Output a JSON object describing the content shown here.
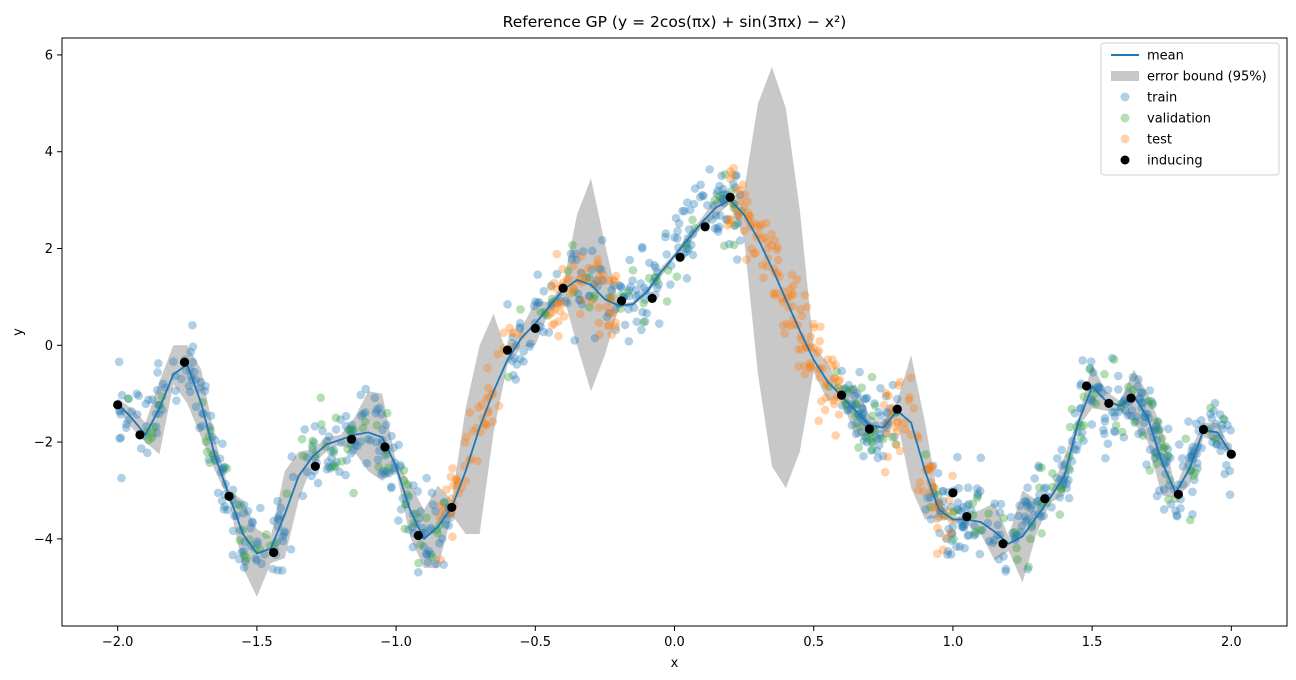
{
  "chart_data": {
    "type": "scatter",
    "title": "Reference GP (y = 2cos(πx) + sin(3πx) − x²)",
    "xlabel": "x",
    "ylabel": "y",
    "xlim": [
      -2.2,
      2.2
    ],
    "ylim": [
      -5.8,
      6.35
    ],
    "xticks": [
      -2.0,
      -1.5,
      -1.0,
      -0.5,
      0.0,
      0.5,
      1.0,
      1.5,
      2.0
    ],
    "xtick_labels": [
      "−2.0",
      "−1.5",
      "−1.0",
      "−0.5",
      "0.0",
      "0.5",
      "1.0",
      "1.5",
      "2.0"
    ],
    "yticks": [
      -4,
      -2,
      0,
      2,
      4,
      6
    ],
    "ytick_labels": [
      "−4",
      "−2",
      "0",
      "2",
      "4",
      "6"
    ],
    "grid": false,
    "legend_position": "top-right",
    "legend": [
      {
        "label": "mean",
        "kind": "line",
        "color": "#1f77b4"
      },
      {
        "label": "error bound (95%)",
        "kind": "patch",
        "color": "#c8c8c8"
      },
      {
        "label": "train",
        "kind": "marker",
        "color": "#1f77b4"
      },
      {
        "label": "validation",
        "kind": "marker",
        "color": "#2ca02c"
      },
      {
        "label": "test",
        "kind": "marker",
        "color": "#ff7f0e"
      },
      {
        "label": "inducing",
        "kind": "marker",
        "color": "#000000"
      }
    ],
    "mean": {
      "x": [
        -2.0,
        -1.95,
        -1.9,
        -1.85,
        -1.8,
        -1.75,
        -1.7,
        -1.65,
        -1.6,
        -1.55,
        -1.5,
        -1.45,
        -1.4,
        -1.35,
        -1.3,
        -1.25,
        -1.2,
        -1.15,
        -1.1,
        -1.05,
        -1.0,
        -0.95,
        -0.9,
        -0.85,
        -0.8,
        -0.75,
        -0.7,
        -0.65,
        -0.6,
        -0.55,
        -0.5,
        -0.45,
        -0.4,
        -0.35,
        -0.3,
        -0.25,
        -0.2,
        -0.15,
        -0.1,
        -0.05,
        0.0,
        0.05,
        0.1,
        0.15,
        0.2,
        0.25,
        0.3,
        0.35,
        0.4,
        0.45,
        0.5,
        0.55,
        0.6,
        0.65,
        0.7,
        0.75,
        0.8,
        0.85,
        0.9,
        0.95,
        1.0,
        1.05,
        1.1,
        1.15,
        1.2,
        1.25,
        1.3,
        1.35,
        1.4,
        1.45,
        1.5,
        1.55,
        1.6,
        1.65,
        1.7,
        1.75,
        1.8,
        1.85,
        1.9,
        1.95,
        2.0
      ],
      "y": [
        -1.2,
        -1.5,
        -1.85,
        -1.3,
        -0.6,
        -0.4,
        -1.2,
        -2.3,
        -3.1,
        -3.9,
        -4.3,
        -4.2,
        -3.5,
        -2.7,
        -2.3,
        -2.05,
        -1.95,
        -1.85,
        -1.8,
        -1.9,
        -2.5,
        -3.4,
        -4.0,
        -3.75,
        -3.35,
        -2.6,
        -1.7,
        -0.95,
        -0.3,
        0.15,
        0.45,
        0.8,
        1.15,
        1.35,
        1.25,
        0.95,
        0.82,
        0.85,
        1.1,
        1.5,
        1.85,
        2.2,
        2.55,
        2.85,
        3.0,
        2.7,
        2.2,
        1.6,
        0.95,
        0.3,
        -0.3,
        -0.75,
        -1.05,
        -1.35,
        -1.65,
        -1.7,
        -1.35,
        -1.6,
        -2.6,
        -3.4,
        -3.6,
        -3.6,
        -3.65,
        -3.85,
        -4.1,
        -3.95,
        -3.55,
        -3.15,
        -2.7,
        -1.6,
        -0.85,
        -1.15,
        -1.25,
        -1.05,
        -1.5,
        -2.4,
        -3.05,
        -2.55,
        -1.75,
        -1.8,
        -2.25
      ]
    },
    "error_band": {
      "x": [
        -2.0,
        -1.95,
        -1.9,
        -1.85,
        -1.8,
        -1.75,
        -1.7,
        -1.65,
        -1.6,
        -1.55,
        -1.5,
        -1.45,
        -1.4,
        -1.35,
        -1.3,
        -1.25,
        -1.2,
        -1.15,
        -1.1,
        -1.05,
        -1.0,
        -0.95,
        -0.9,
        -0.85,
        -0.8,
        -0.75,
        -0.7,
        -0.65,
        -0.6,
        -0.55,
        -0.5,
        -0.45,
        -0.4,
        -0.35,
        -0.3,
        -0.25,
        -0.2,
        -0.15,
        -0.1,
        -0.05,
        0.0,
        0.05,
        0.1,
        0.15,
        0.2,
        0.25,
        0.3,
        0.35,
        0.4,
        0.45,
        0.5,
        0.55,
        0.6,
        0.65,
        0.7,
        0.75,
        0.8,
        0.85,
        0.9,
        0.95,
        1.0,
        1.05,
        1.1,
        1.15,
        1.2,
        1.25,
        1.3,
        1.35,
        1.4,
        1.45,
        1.5,
        1.55,
        1.6,
        1.65,
        1.7,
        1.75,
        1.8,
        1.85,
        1.9,
        1.95,
        2.0
      ],
      "lower": [
        -1.3,
        -1.7,
        -2.0,
        -2.25,
        -0.8,
        -1.2,
        -1.9,
        -2.6,
        -3.2,
        -4.6,
        -5.2,
        -4.5,
        -4.4,
        -3.2,
        -2.45,
        -2.2,
        -2.05,
        -2.2,
        -2.6,
        -2.8,
        -2.6,
        -3.95,
        -4.6,
        -4.6,
        -3.5,
        -3.9,
        -3.9,
        -1.8,
        -0.4,
        -0.05,
        0.0,
        0.7,
        1.05,
        0.0,
        -0.95,
        -0.2,
        0.78,
        0.8,
        1.05,
        1.4,
        1.8,
        2.1,
        2.45,
        2.65,
        2.95,
        2.2,
        -0.6,
        -2.5,
        -2.95,
        -2.2,
        -0.55,
        -1.15,
        -1.1,
        -1.9,
        -1.85,
        -1.8,
        -1.55,
        -2.95,
        -3.6,
        -3.55,
        -3.65,
        -3.7,
        -3.9,
        -4.45,
        -4.25,
        -4.9,
        -3.9,
        -3.25,
        -3.1,
        -1.7,
        -1.3,
        -1.35,
        -1.35,
        -1.6,
        -2.0,
        -3.1,
        -3.15,
        -2.9,
        -1.9,
        -2.0,
        -2.35
      ],
      "upper": [
        -1.1,
        -1.3,
        -1.6,
        -0.75,
        0.0,
        0.0,
        -0.5,
        -1.95,
        -3.0,
        -3.2,
        -3.8,
        -3.95,
        -2.6,
        -2.2,
        -2.15,
        -1.9,
        -1.85,
        -1.5,
        -0.95,
        -1.0,
        -2.4,
        -2.85,
        -3.4,
        -2.9,
        -3.2,
        -1.3,
        0.0,
        0.65,
        -0.2,
        0.35,
        0.9,
        0.9,
        1.25,
        2.7,
        3.45,
        2.1,
        0.86,
        0.9,
        1.15,
        1.6,
        1.9,
        2.3,
        2.65,
        3.05,
        3.05,
        3.2,
        5.0,
        5.75,
        4.9,
        2.8,
        -0.05,
        -0.35,
        -1.0,
        -0.8,
        -1.45,
        -1.6,
        -1.15,
        -0.2,
        -1.6,
        -3.25,
        -3.55,
        -3.5,
        -3.4,
        -3.25,
        -3.95,
        -3.0,
        -3.2,
        -3.05,
        -2.3,
        -1.5,
        -0.4,
        -0.95,
        -1.15,
        -0.5,
        -1.0,
        -1.7,
        -2.95,
        -2.2,
        -1.6,
        -1.6,
        -2.15
      ]
    },
    "inducing": {
      "x": [
        -2.0,
        -1.92,
        -1.76,
        -1.6,
        -1.44,
        -1.29,
        -1.16,
        -1.04,
        -0.92,
        -0.8,
        -0.6,
        -0.5,
        -0.4,
        -0.19,
        -0.08,
        0.02,
        0.11,
        0.2,
        0.6,
        0.7,
        0.8,
        1.0,
        1.05,
        1.18,
        1.33,
        1.48,
        1.56,
        1.64,
        1.81,
        1.9,
        2.0
      ],
      "y": [
        -1.23,
        -1.85,
        -0.35,
        -3.12,
        -4.28,
        -2.5,
        -1.94,
        -2.1,
        -3.93,
        -3.35,
        -0.1,
        0.35,
        1.18,
        0.92,
        0.97,
        1.82,
        2.45,
        3.06,
        -1.03,
        -1.73,
        -1.32,
        -3.05,
        -3.54,
        -4.1,
        -3.17,
        -0.84,
        -1.2,
        -1.09,
        -3.08,
        -1.74,
        -2.25
      ]
    },
    "series": [
      {
        "name": "train",
        "color": "#1f77b4",
        "segments": [
          [
            -2.0,
            -0.8,
            260
          ],
          [
            -0.6,
            -0.2,
            70
          ],
          [
            -0.2,
            0.25,
            110
          ],
          [
            0.6,
            0.8,
            70
          ],
          [
            0.9,
            2.0,
            300
          ]
        ]
      },
      {
        "name": "validation",
        "color": "#2ca02c",
        "segments": [
          [
            -2.0,
            -0.8,
            70
          ],
          [
            -0.6,
            0.25,
            40
          ],
          [
            0.55,
            0.8,
            25
          ],
          [
            0.9,
            2.0,
            75
          ]
        ]
      },
      {
        "name": "test",
        "color": "#ff7f0e",
        "segments": [
          [
            -0.85,
            -0.55,
            55
          ],
          [
            -0.45,
            -0.2,
            60
          ],
          [
            0.18,
            0.6,
            130
          ],
          [
            0.75,
            1.0,
            55
          ]
        ]
      }
    ]
  }
}
